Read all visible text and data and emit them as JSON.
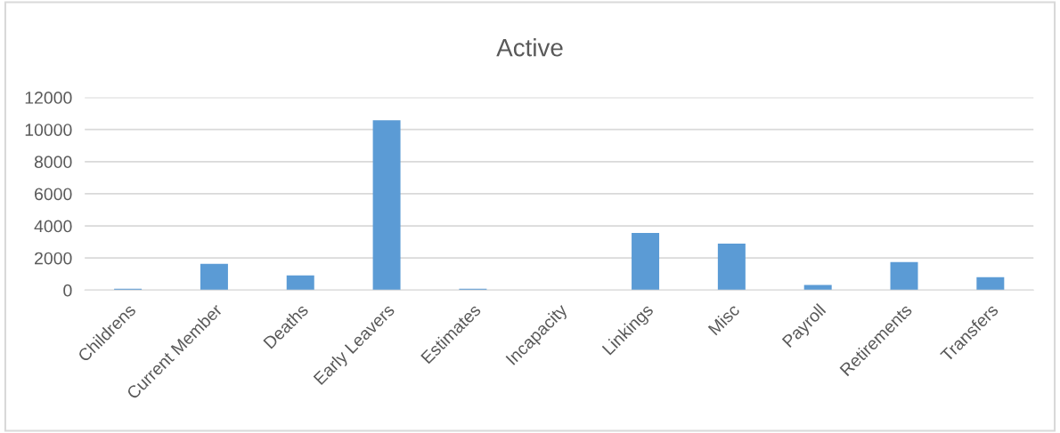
{
  "chart_data": {
    "type": "bar",
    "title": "Active",
    "categories": [
      "Childrens",
      "Current Member",
      "Deaths",
      "Early Leavers",
      "Estimates",
      "Incapacity",
      "Linkings",
      "Misc",
      "Payroll",
      "Retirements",
      "Transfers"
    ],
    "values": [
      80,
      1630,
      910,
      10580,
      80,
      0,
      3560,
      2900,
      320,
      1750,
      800
    ],
    "color": "#5b9bd5",
    "ylim": [
      0,
      12000
    ],
    "yticks": [
      0,
      2000,
      4000,
      6000,
      8000,
      10000,
      12000
    ],
    "grid": "y"
  }
}
